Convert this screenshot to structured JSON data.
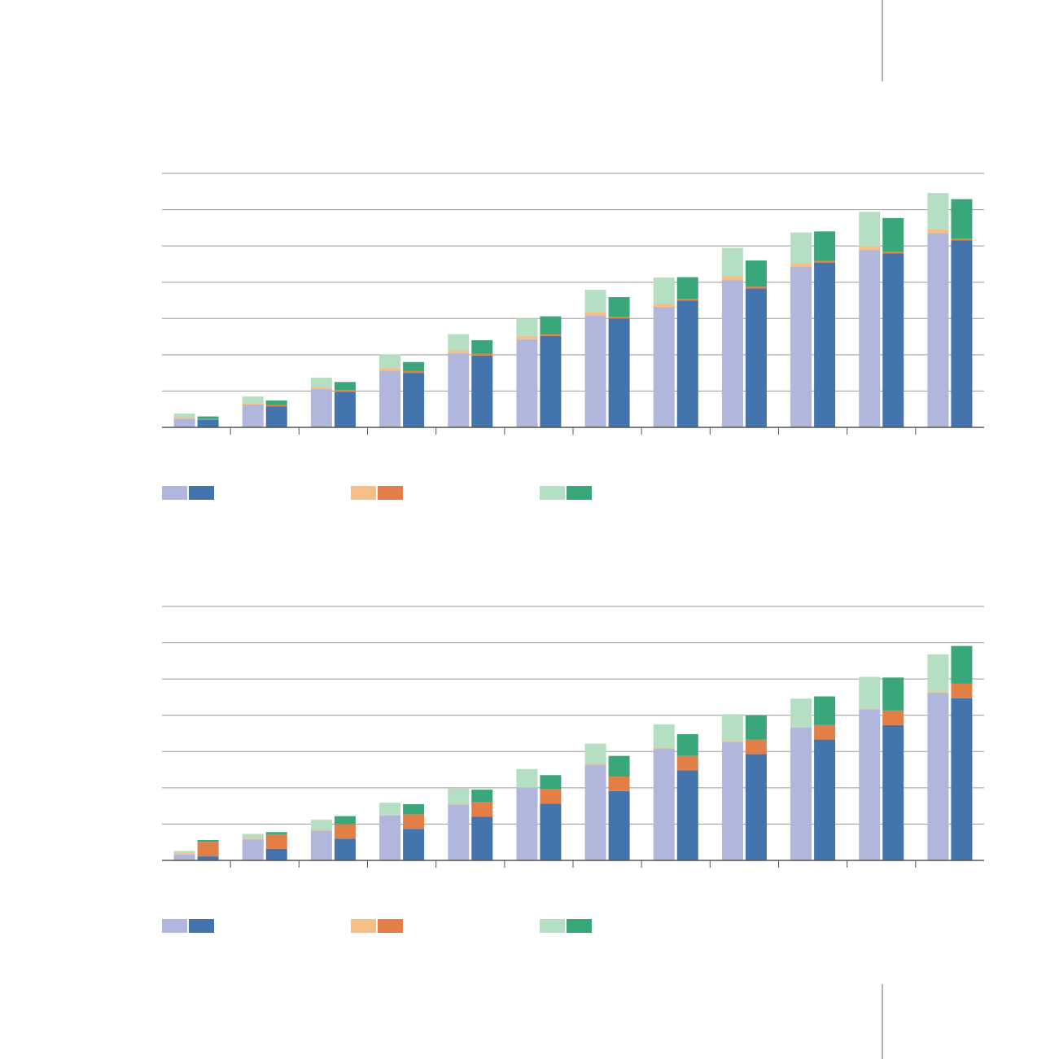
{
  "palette": {
    "light": [
      "#b0b6dc",
      "#f8bf85",
      "#b5dfc3"
    ],
    "dark": [
      "#4474ad",
      "#e17f47",
      "#3aa77a"
    ],
    "grid": "#9a9a9a",
    "axis": "#555555"
  },
  "legend": {
    "items": [
      {
        "icon": "purple-blue-swatch"
      },
      {
        "icon": "orange-swatch"
      },
      {
        "icon": "green-swatch"
      }
    ]
  },
  "chart_data": [
    {
      "type": "bar",
      "stacked": true,
      "grouped_pairs": true,
      "categories": [
        "",
        "",
        "",
        "",
        "",
        "",
        "",
        "",
        "",
        "",
        "",
        ""
      ],
      "ylim": [
        0,
        70
      ],
      "yticks": [
        0,
        10,
        20,
        30,
        40,
        50,
        60,
        70
      ],
      "grid": true,
      "series_left": [
        {
          "stack": [
            2.4,
            0.4,
            1.0
          ]
        },
        {
          "stack": [
            6.3,
            0.4,
            1.8
          ]
        },
        {
          "stack": [
            10.6,
            0.6,
            2.5
          ]
        },
        {
          "stack": [
            15.6,
            0.7,
            3.8
          ]
        },
        {
          "stack": [
            20.4,
            0.8,
            4.5
          ]
        },
        {
          "stack": [
            24.3,
            0.9,
            4.8
          ]
        },
        {
          "stack": [
            30.9,
            0.9,
            6.1
          ]
        },
        {
          "stack": [
            33.2,
            0.9,
            7.2
          ]
        },
        {
          "stack": [
            40.5,
            1.0,
            8.0
          ]
        },
        {
          "stack": [
            44.2,
            1.0,
            8.5
          ]
        },
        {
          "stack": [
            48.8,
            1.1,
            9.5
          ]
        },
        {
          "stack": [
            53.5,
            1.1,
            10.0
          ]
        }
      ],
      "series_right": [
        {
          "stack": [
            2.1,
            0.2,
            0.7
          ]
        },
        {
          "stack": [
            5.8,
            0.3,
            1.3
          ]
        },
        {
          "stack": [
            9.8,
            0.5,
            2.2
          ]
        },
        {
          "stack": [
            15.0,
            0.5,
            2.5
          ]
        },
        {
          "stack": [
            19.8,
            0.5,
            3.7
          ]
        },
        {
          "stack": [
            25.2,
            0.5,
            4.9
          ]
        },
        {
          "stack": [
            30.0,
            0.5,
            5.4
          ]
        },
        {
          "stack": [
            34.9,
            0.5,
            6.0
          ]
        },
        {
          "stack": [
            38.3,
            0.5,
            7.2
          ]
        },
        {
          "stack": [
            45.4,
            0.5,
            8.1
          ]
        },
        {
          "stack": [
            47.9,
            0.5,
            9.3
          ]
        },
        {
          "stack": [
            51.5,
            0.5,
            10.9
          ]
        }
      ]
    },
    {
      "type": "bar",
      "stacked": true,
      "grouped_pairs": true,
      "categories": [
        "",
        "",
        "",
        "",
        "",
        "",
        "",
        "",
        "",
        "",
        "",
        ""
      ],
      "ylim": [
        0,
        70
      ],
      "yticks": [
        0,
        10,
        20,
        30,
        40,
        50,
        60,
        70
      ],
      "grid": true,
      "series_left": [
        {
          "stack": [
            1.6,
            0.4,
            0.6
          ]
        },
        {
          "stack": [
            5.8,
            0.2,
            1.3
          ]
        },
        {
          "stack": [
            8.2,
            0.2,
            2.8
          ]
        },
        {
          "stack": [
            12.4,
            0.2,
            3.3
          ]
        },
        {
          "stack": [
            15.4,
            0.2,
            4.2
          ]
        },
        {
          "stack": [
            20.0,
            0.2,
            5.0
          ]
        },
        {
          "stack": [
            26.4,
            0.2,
            5.6
          ]
        },
        {
          "stack": [
            30.9,
            0.2,
            6.4
          ]
        },
        {
          "stack": [
            32.7,
            0.2,
            7.4
          ]
        },
        {
          "stack": [
            36.6,
            0.2,
            7.8
          ]
        },
        {
          "stack": [
            41.6,
            0.2,
            8.8
          ]
        },
        {
          "stack": [
            46.2,
            0.2,
            10.4
          ]
        }
      ],
      "series_right": [
        {
          "stack": [
            1.1,
            4.0,
            0.5
          ]
        },
        {
          "stack": [
            3.2,
            4.0,
            0.6
          ]
        },
        {
          "stack": [
            6.0,
            4.0,
            2.2
          ]
        },
        {
          "stack": [
            8.7,
            4.0,
            2.8
          ]
        },
        {
          "stack": [
            12.0,
            4.0,
            3.5
          ]
        },
        {
          "stack": [
            15.6,
            4.0,
            3.9
          ]
        },
        {
          "stack": [
            19.1,
            4.0,
            5.7
          ]
        },
        {
          "stack": [
            24.8,
            4.0,
            6.0
          ]
        },
        {
          "stack": [
            29.3,
            4.0,
            6.7
          ]
        },
        {
          "stack": [
            33.3,
            4.0,
            7.9
          ]
        },
        {
          "stack": [
            37.3,
            4.0,
            9.1
          ]
        },
        {
          "stack": [
            44.7,
            4.0,
            10.4
          ]
        }
      ]
    }
  ]
}
